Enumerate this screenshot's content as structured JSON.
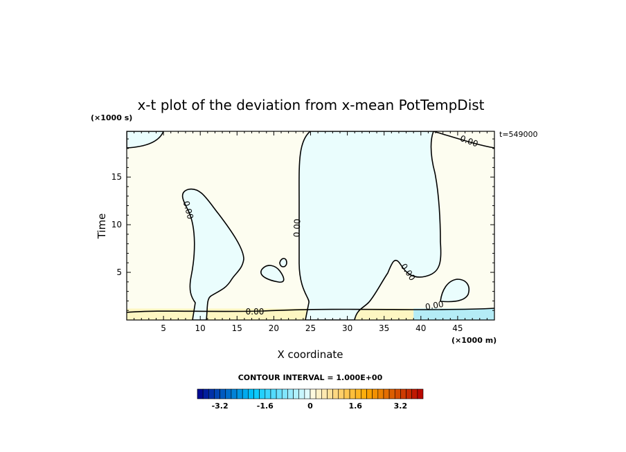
{
  "chart_data": {
    "type": "heatmap",
    "title": "x-t plot of the deviation from x-mean PotTempDist",
    "xlabel": "X coordinate",
    "ylabel": "Time",
    "x_unit": "(×1000 m)",
    "y_unit": "(×1000 s)",
    "time_stamp": "t=549000",
    "xlim": [
      0,
      50
    ],
    "ylim": [
      0,
      19.8
    ],
    "x_ticks": [
      5,
      10,
      15,
      20,
      25,
      30,
      35,
      40,
      45
    ],
    "y_ticks": [
      5,
      10,
      15
    ],
    "contour_label": "0.00",
    "contour_interval_text": "CONTOUR INTERVAL = 1.000E+00",
    "colorbar": {
      "min": -4.0,
      "max": 4.0,
      "step": 0.2,
      "tick_labels": [
        "-3.2",
        "-1.6",
        "0",
        "1.6",
        "3.2"
      ],
      "tick_values": [
        -3.2,
        -1.6,
        0,
        1.6,
        3.2
      ]
    },
    "regions": [
      {
        "sign": "negative",
        "description": "large column",
        "x_range": [
          23.5,
          43
        ],
        "t_range": [
          1.3,
          19.8
        ]
      },
      {
        "sign": "negative",
        "description": "tongue",
        "x_range": [
          7.5,
          15.5
        ],
        "t_range": [
          1.3,
          13.7
        ]
      },
      {
        "sign": "negative",
        "description": "corner top-left",
        "x_range": [
          0,
          5
        ],
        "t_range": [
          18.5,
          19.8
        ]
      },
      {
        "sign": "negative",
        "description": "patch right",
        "x_range": [
          42.5,
          46.5
        ],
        "t_range": [
          1.5,
          4.3
        ]
      },
      {
        "sign": "negative",
        "description": "band right bottom",
        "x_range": [
          39,
          50
        ],
        "t_range": [
          0,
          1.2
        ]
      },
      {
        "sign": "positive",
        "description": "band bottom",
        "x_range": [
          0,
          39
        ],
        "t_range": [
          0,
          1.2
        ]
      }
    ]
  },
  "colors": {
    "neutral_positive": "#fdfdf0",
    "neutral_negative": "#eafdfd",
    "small_positive": "#fdf6c2",
    "small_negative": "#b4ecf6",
    "contour": "#000000"
  }
}
